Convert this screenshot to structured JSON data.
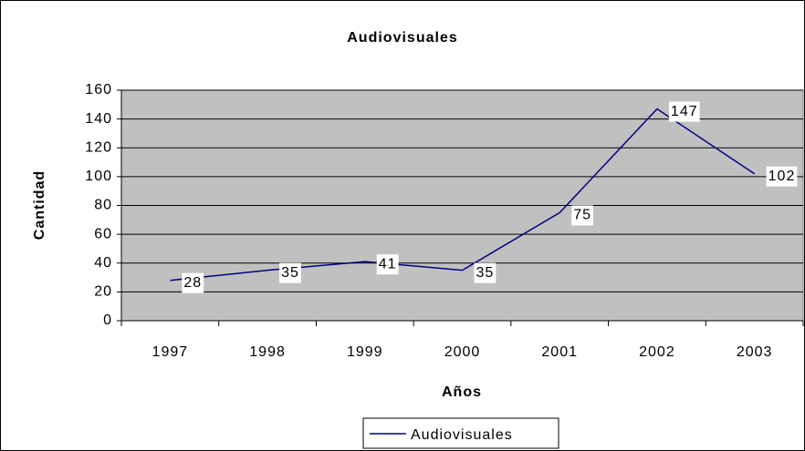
{
  "chart_data": {
    "type": "line",
    "title": "Audiovisuales",
    "x_label": "Años",
    "y_label": "Cantidad",
    "categories": [
      "1997",
      "1998",
      "1999",
      "2000",
      "2001",
      "2002",
      "2003"
    ],
    "series": [
      {
        "name": "Audiovisuales",
        "color": "#000080",
        "values": [
          28,
          35,
          41,
          35,
          75,
          147,
          102
        ]
      }
    ],
    "ylim": [
      0,
      160
    ],
    "yticks": [
      0,
      20,
      40,
      60,
      80,
      100,
      120,
      140,
      160
    ],
    "grid": true,
    "legend": "bottom"
  }
}
